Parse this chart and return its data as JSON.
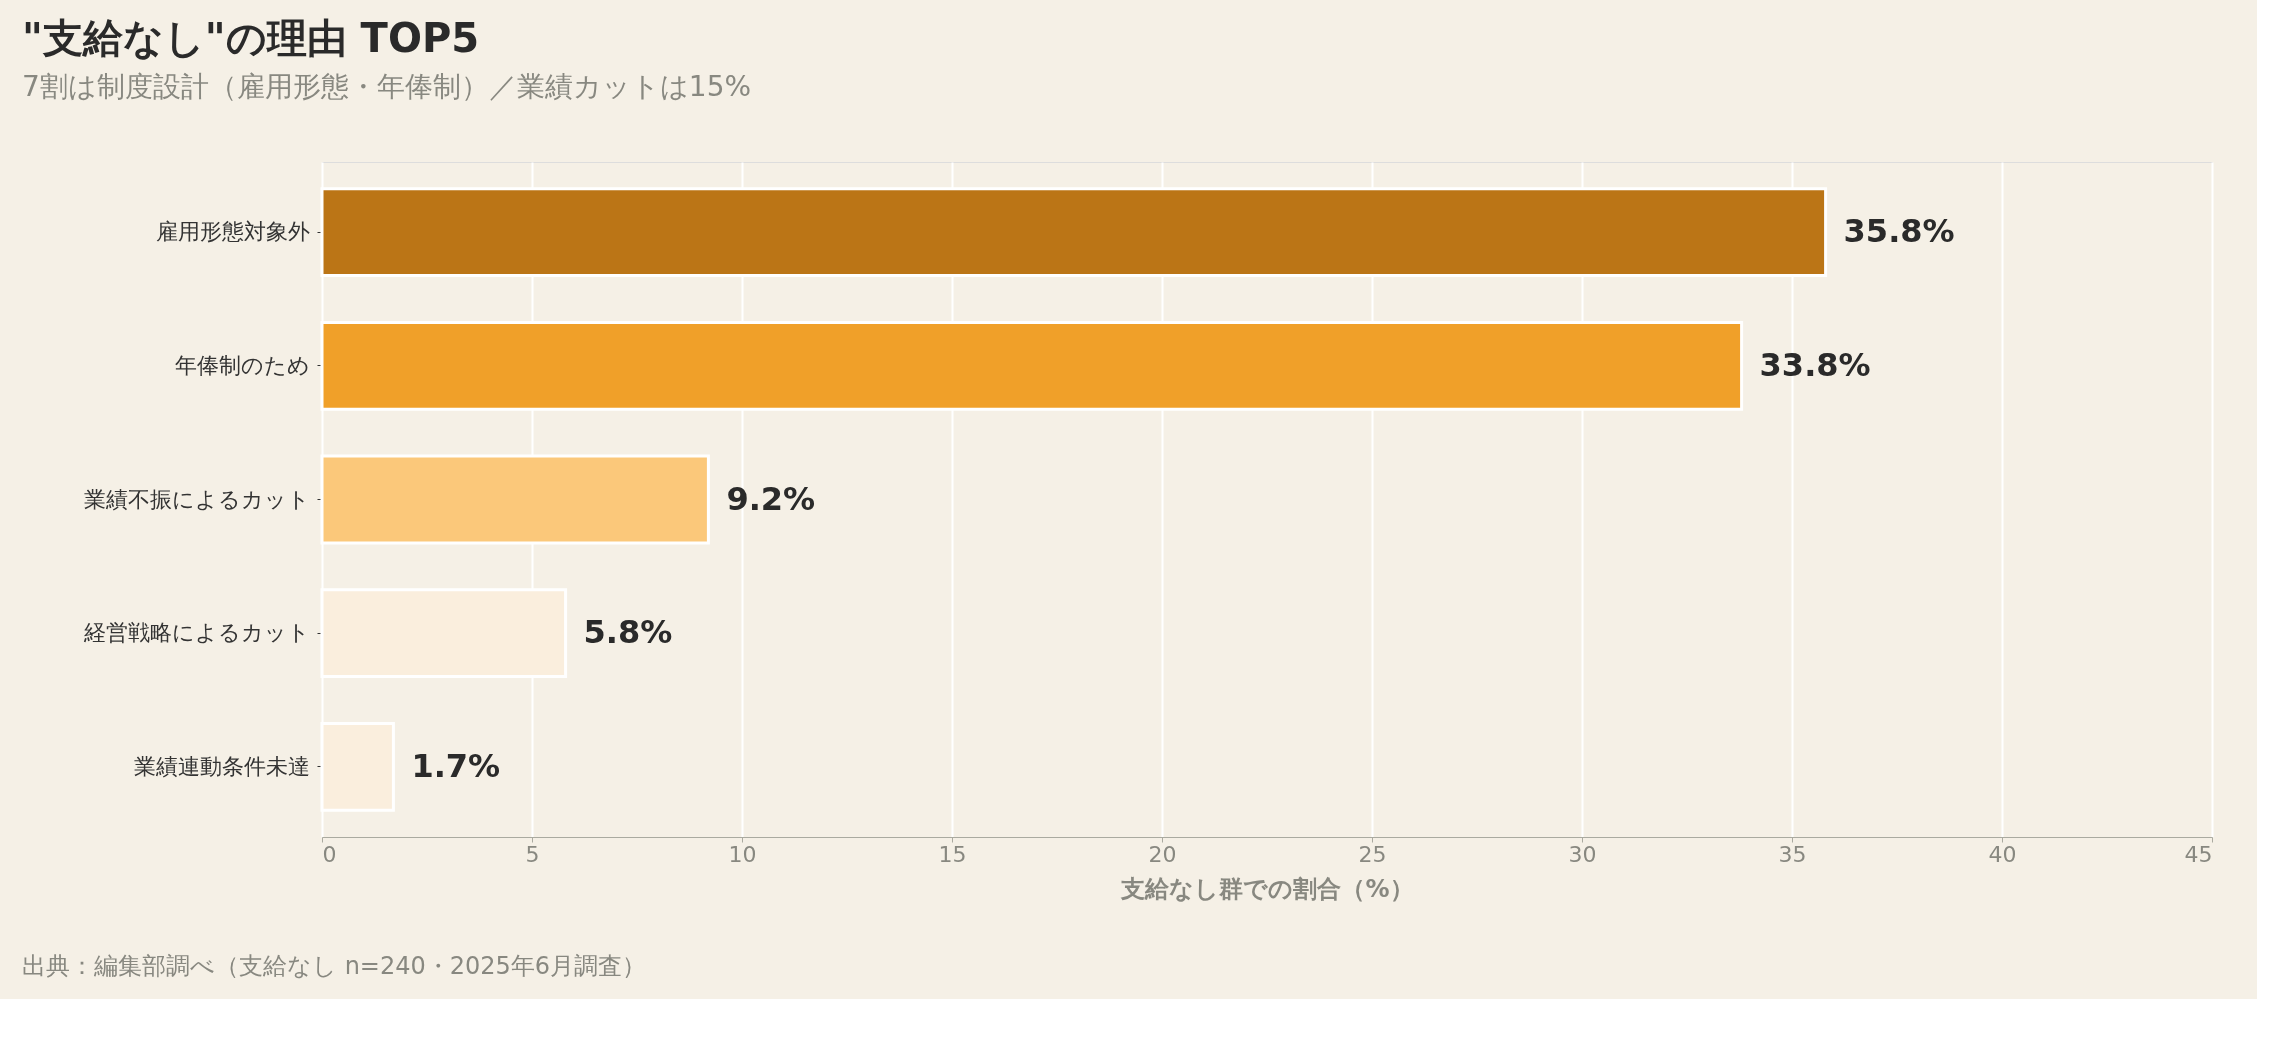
{
  "chart_data": {
    "type": "bar",
    "orientation": "horizontal",
    "title": "\"支給なし\"の理由 TOP5",
    "subtitle": "7割は制度設計（雇用形態・年俸制）／業績カットは15%",
    "categories": [
      "雇用形態対象外",
      "年俸制のため",
      "業績不振によるカット",
      "経営戦略によるカット",
      "業績連動条件未達"
    ],
    "values": [
      35.8,
      33.8,
      9.2,
      5.8,
      1.7
    ],
    "colors": [
      "#bb7516",
      "#f0a029",
      "#fbc87a",
      "#faeedd",
      "#faeedd"
    ],
    "value_labels": [
      "35.8%",
      "33.8%",
      "9.2%",
      "5.8%",
      "1.7%"
    ],
    "xlabel": "支給なし群での割合（%）",
    "xlim": [
      0,
      45
    ],
    "xticks": [
      0,
      5,
      10,
      15,
      20,
      25,
      30,
      35,
      40,
      45
    ],
    "grid": "x",
    "annotations": [
      "出典：編集部調べ（支給なし n=240・2025年6月調査）"
    ]
  }
}
